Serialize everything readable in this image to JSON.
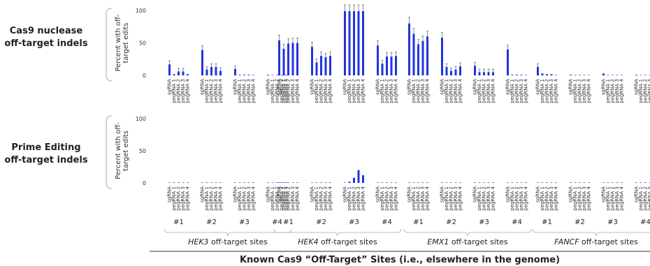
{
  "chart_data": {
    "type": "bar",
    "row_titles": [
      [
        "Cas9 nuclease",
        "off-target indels"
      ],
      [
        "Prime Editing",
        "off-target indels"
      ]
    ],
    "ylabel": [
      "Percent with off-",
      "target edits"
    ],
    "ylim": [
      0,
      100
    ],
    "yticks": [
      0,
      50,
      100
    ],
    "bar_color": "#2233dd",
    "bar_labels": [
      "sgRNA",
      "pegRNA 1",
      "pegRNA 2",
      "pegRNA 3",
      "pegRNA 4"
    ],
    "genes": [
      {
        "name": "HEK3",
        "suffix": " off-target sites",
        "site_labels": [
          "#1",
          "#2",
          "#3",
          "#4"
        ],
        "cas9": [
          [
            17,
            2,
            6,
            6,
            2
          ],
          [
            39,
            9,
            13,
            13,
            7
          ],
          [
            10,
            1,
            1,
            1,
            0
          ],
          [
            1,
            0,
            0,
            0,
            0
          ]
        ],
        "pe": [
          [
            0,
            0,
            0,
            0,
            0
          ],
          [
            0,
            0,
            0,
            0,
            0
          ],
          [
            0,
            0,
            0,
            0,
            0
          ],
          [
            0,
            0,
            0,
            0,
            0
          ]
        ]
      },
      {
        "name": "HEK4",
        "suffix": " off-target sites",
        "site_labels": [
          "#1",
          "#2",
          "#3",
          "#4"
        ],
        "cas9": [
          [
            54,
            41,
            49,
            50,
            50
          ],
          [
            44,
            20,
            30,
            28,
            30
          ],
          [
            99,
            99,
            99,
            99,
            99
          ],
          [
            46,
            18,
            29,
            29,
            30
          ]
        ],
        "pe": [
          [
            0,
            0,
            0,
            0,
            0
          ],
          [
            0,
            0,
            0,
            0,
            0
          ],
          [
            0,
            2,
            8,
            20,
            12
          ],
          [
            0,
            0,
            0,
            0,
            0
          ]
        ]
      },
      {
        "name": "EMX1",
        "suffix": " off-target sites",
        "site_labels": [
          "#1",
          "#2",
          "#3",
          "#4"
        ],
        "cas9": [
          [
            80,
            64,
            48,
            53,
            60
          ],
          [
            58,
            13,
            7,
            9,
            14
          ],
          [
            15,
            5,
            5,
            5,
            5
          ],
          [
            40,
            1,
            1,
            1,
            0
          ]
        ],
        "pe": [
          [
            0,
            0,
            0,
            0,
            0
          ],
          [
            0,
            0,
            0,
            0,
            0
          ],
          [
            0,
            0,
            0,
            0,
            0
          ],
          [
            0,
            0,
            0,
            0,
            0
          ]
        ]
      },
      {
        "name": "FANCF",
        "suffix": " off-target sites",
        "site_labels": [
          "#1",
          "#2",
          "#3",
          "#4"
        ],
        "cas9": [
          [
            13,
            3,
            2,
            2,
            0
          ],
          [
            1,
            0,
            0,
            0,
            0
          ],
          [
            3,
            0,
            0,
            0,
            0
          ],
          [
            1,
            0,
            0,
            0,
            0
          ]
        ],
        "pe": [
          [
            0,
            0,
            0,
            0,
            0
          ],
          [
            0,
            0,
            0,
            0,
            0
          ],
          [
            0,
            0,
            0,
            0,
            0
          ],
          [
            0,
            0,
            0,
            0,
            0
          ]
        ]
      }
    ],
    "footer": "Known Cas9 “Off-Target” Sites (i.e., elsewhere in the genome)"
  }
}
